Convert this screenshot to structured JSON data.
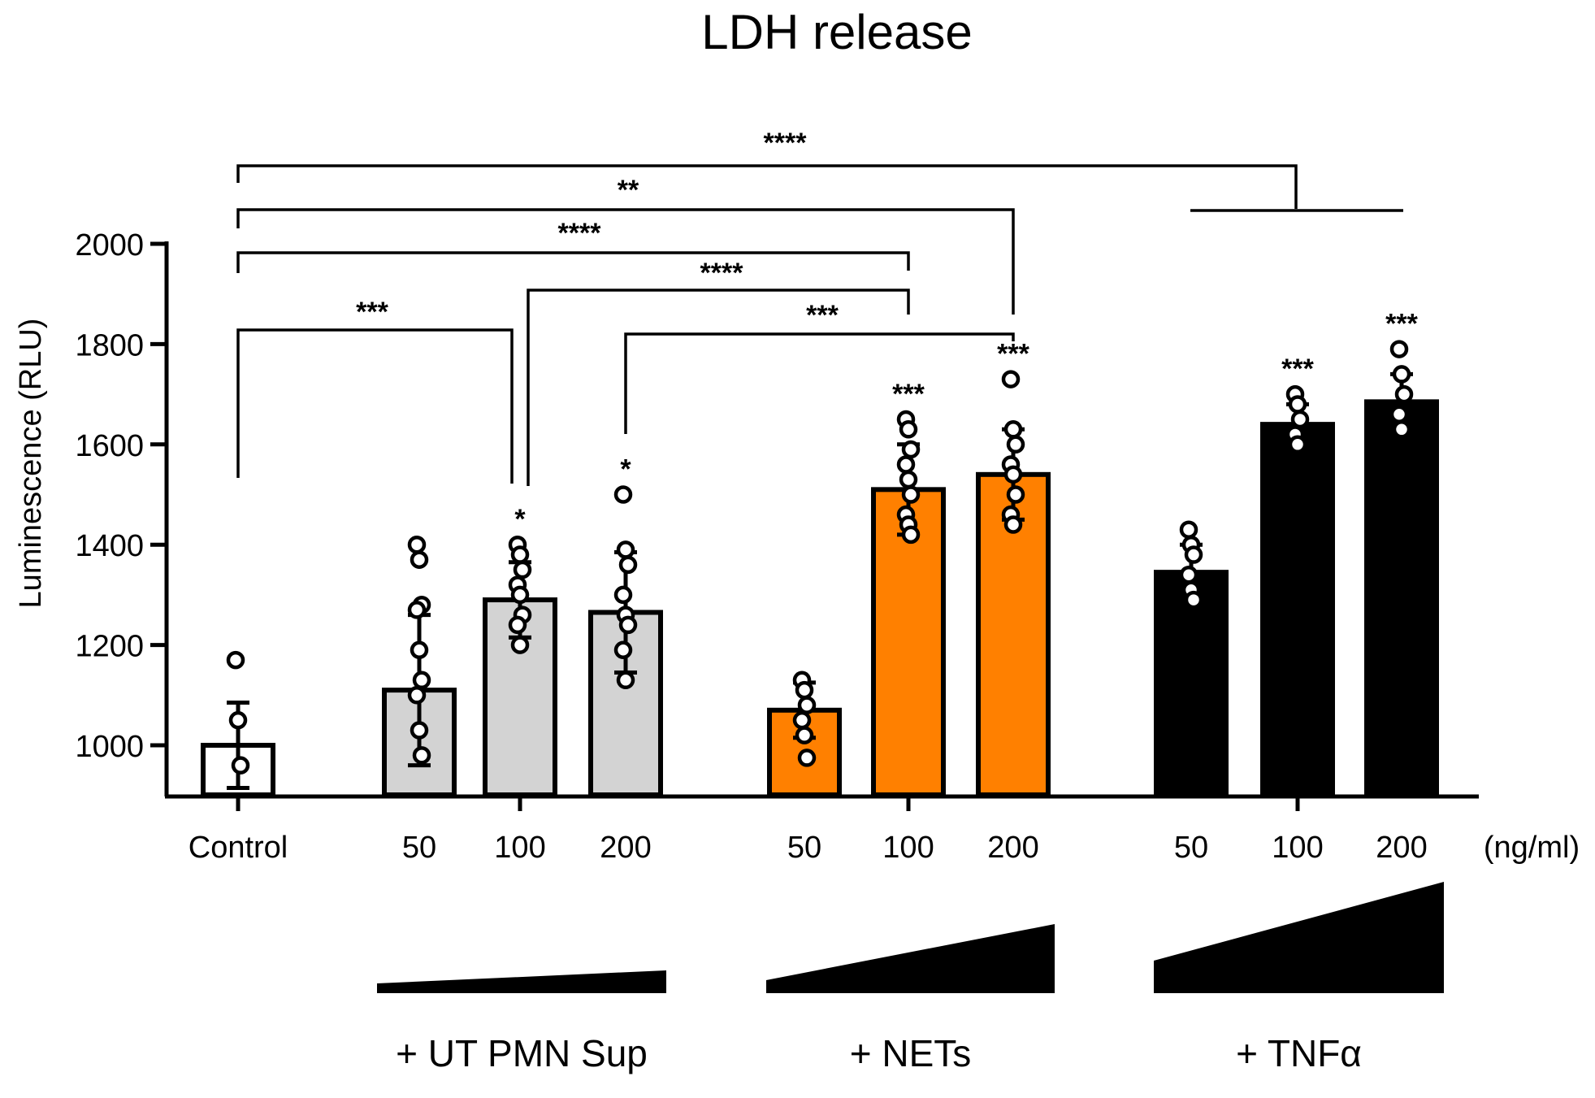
{
  "chart_data": {
    "type": "bar",
    "title": "LDH release",
    "ylabel": "Luminescence (RLU)",
    "xlabel": "",
    "ylim": [
      900,
      2000
    ],
    "yticks": [
      1000,
      1200,
      1400,
      1600,
      1800,
      2000
    ],
    "unit_label": "(ng/ml)",
    "colors": {
      "control": "#ffffff",
      "ut": "#d3d3d3",
      "nets": "#ff8000",
      "tnf": "#000000",
      "stroke": "#000000"
    },
    "groups": [
      {
        "key": "control",
        "label": ""
      },
      {
        "key": "ut",
        "label": "+ UT PMN Sup"
      },
      {
        "key": "nets",
        "label": "+ NETs"
      },
      {
        "key": "tnf",
        "label": "+ TNFα"
      }
    ],
    "bars": [
      {
        "label": "Control",
        "group": "control",
        "mean": 1000,
        "sd": 85,
        "points": [
          1170,
          1050,
          960
        ],
        "sig": ""
      },
      {
        "label": "50",
        "group": "ut",
        "mean": 1110,
        "sd": 150,
        "points": [
          1400,
          1370,
          1280,
          1270,
          1190,
          1130,
          1100,
          1030,
          980
        ],
        "sig": ""
      },
      {
        "label": "100",
        "group": "ut",
        "mean": 1290,
        "sd": 75,
        "points": [
          1400,
          1380,
          1350,
          1320,
          1300,
          1260,
          1240,
          1200
        ],
        "sig": "*"
      },
      {
        "label": "200",
        "group": "ut",
        "mean": 1265,
        "sd": 120,
        "points": [
          1500,
          1390,
          1360,
          1300,
          1260,
          1240,
          1190,
          1130
        ],
        "sig": "*"
      },
      {
        "label": "50",
        "group": "nets",
        "mean": 1070,
        "sd": 55,
        "points": [
          1130,
          1110,
          1080,
          1050,
          1020,
          975
        ],
        "sig": ""
      },
      {
        "label": "100",
        "group": "nets",
        "mean": 1510,
        "sd": 90,
        "points": [
          1650,
          1630,
          1590,
          1560,
          1530,
          1500,
          1460,
          1440,
          1420
        ],
        "sig": "***"
      },
      {
        "label": "200",
        "group": "nets",
        "mean": 1540,
        "sd": 90,
        "points": [
          1730,
          1630,
          1600,
          1560,
          1540,
          1500,
          1460,
          1440
        ],
        "sig": "***"
      },
      {
        "label": "50",
        "group": "tnf",
        "mean": 1345,
        "sd": 55,
        "points": [
          1430,
          1400,
          1380,
          1340,
          1310,
          1290
        ],
        "sig": ""
      },
      {
        "label": "100",
        "group": "tnf",
        "mean": 1640,
        "sd": 40,
        "points": [
          1700,
          1680,
          1650,
          1620,
          1600
        ],
        "sig": "***"
      },
      {
        "label": "200",
        "group": "tnf",
        "mean": 1685,
        "sd": 55,
        "points": [
          1790,
          1740,
          1700,
          1660,
          1630
        ],
        "sig": "***"
      }
    ],
    "comparisons": [
      {
        "from": "Control",
        "to": "TNFα 50–200",
        "sig": "****"
      },
      {
        "from": "Control",
        "to": "NETs 200",
        "sig": "**"
      },
      {
        "from": "Control",
        "to": "NETs 100",
        "sig": "****"
      },
      {
        "from": "UT PMN Sup 100",
        "to": "NETs 100",
        "sig": "****"
      },
      {
        "from": "UT PMN Sup 200",
        "to": "NETs 200",
        "sig": "***"
      },
      {
        "from": "Control",
        "to": "UT PMN Sup 100",
        "sig": "***"
      }
    ]
  }
}
